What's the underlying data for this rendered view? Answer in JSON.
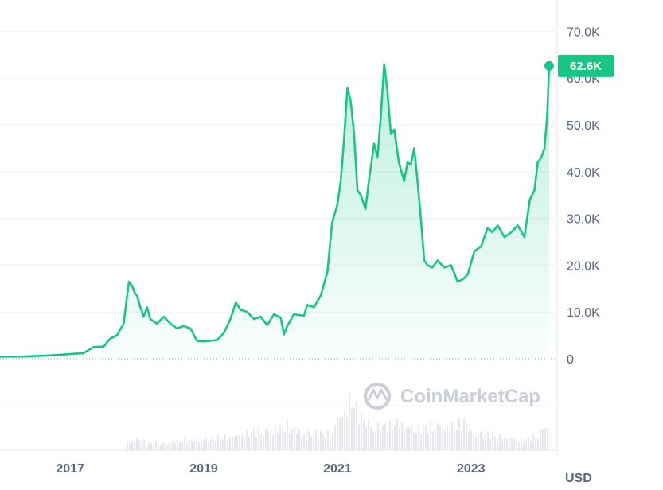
{
  "chart_data": {
    "type": "area",
    "x_ticks": [
      "2017",
      "2019",
      "2021",
      "2023"
    ],
    "y_ticks": [
      "0",
      "10.0K",
      "20.0K",
      "30.0K",
      "40.0K",
      "50.0K",
      "60.0K",
      "70.0K"
    ],
    "ylim": [
      0,
      75000
    ],
    "xlim": [
      2015.95,
      2024.17
    ],
    "unit_label": "USD",
    "current_value_label": "62.6K",
    "current_value": 62600,
    "grid": true,
    "line_color": "#16c784",
    "badge_color": "#16c784",
    "series": [
      {
        "x": [
          2015.95,
          2016.3,
          2016.6,
          2016.9,
          2017.0,
          2017.2,
          2017.35,
          2017.5,
          2017.6,
          2017.7,
          2017.8,
          2017.88,
          2017.93,
          2017.97,
          2018.0,
          2018.05,
          2018.1,
          2018.15,
          2018.2,
          2018.3,
          2018.4,
          2018.5,
          2018.6,
          2018.7,
          2018.8,
          2018.9,
          2019.0,
          2019.2,
          2019.3,
          2019.4,
          2019.48,
          2019.55,
          2019.65,
          2019.75,
          2019.85,
          2019.95,
          2020.05,
          2020.15,
          2020.2,
          2020.25,
          2020.35,
          2020.5,
          2020.55,
          2020.65,
          2020.75,
          2020.85,
          2020.92,
          2021.0,
          2021.05,
          2021.1,
          2021.15,
          2021.2,
          2021.25,
          2021.3,
          2021.35,
          2021.42,
          2021.48,
          2021.55,
          2021.6,
          2021.65,
          2021.7,
          2021.75,
          2021.8,
          2021.85,
          2021.88,
          2021.92,
          2022.0,
          2022.05,
          2022.1,
          2022.15,
          2022.2,
          2022.25,
          2022.3,
          2022.35,
          2022.42,
          2022.5,
          2022.6,
          2022.7,
          2022.8,
          2022.88,
          2022.95,
          2023.05,
          2023.15,
          2023.25,
          2023.32,
          2023.4,
          2023.5,
          2023.6,
          2023.7,
          2023.8,
          2023.88,
          2023.95,
          2024.0,
          2024.05,
          2024.1,
          2024.14,
          2024.17
        ],
        "values": [
          430,
          480,
          650,
          900,
          1000,
          1200,
          2500,
          2600,
          4300,
          5000,
          7500,
          16500,
          15500,
          14000,
          13500,
          11000,
          9000,
          11000,
          8500,
          7500,
          9000,
          7500,
          6500,
          7000,
          6500,
          3800,
          3700,
          4000,
          5500,
          8500,
          12000,
          10500,
          10000,
          8500,
          9000,
          7200,
          9500,
          8800,
          5200,
          7000,
          9500,
          9200,
          11500,
          11000,
          13500,
          18500,
          29000,
          33000,
          38000,
          47000,
          58000,
          55000,
          48000,
          36000,
          35000,
          32000,
          39000,
          46000,
          43000,
          52000,
          63000,
          57000,
          48000,
          49000,
          46000,
          42000,
          38000,
          42000,
          41500,
          45000,
          38000,
          30000,
          21000,
          20000,
          19500,
          21000,
          19500,
          20000,
          16500,
          17000,
          18000,
          23000,
          24000,
          28000,
          27000,
          28500,
          26000,
          27000,
          28500,
          26000,
          34000,
          36000,
          42000,
          43000,
          45000,
          52000,
          62600
        ]
      }
    ],
    "volume": {
      "x": [
        2017.9,
        2018.0,
        2018.2,
        2019.3,
        2019.5,
        2020.2,
        2020.5,
        2020.9,
        2021.0,
        2021.1,
        2021.2,
        2021.3,
        2021.4,
        2021.5,
        2021.8,
        2021.9,
        2022.2,
        2022.5,
        2022.8,
        2022.9,
        2023.0,
        2023.3,
        2023.5,
        2023.8,
        2024.0,
        2024.17
      ],
      "values": [
        0.18,
        0.22,
        0.12,
        0.25,
        0.3,
        0.45,
        0.35,
        0.3,
        0.65,
        0.75,
        1.0,
        0.7,
        0.6,
        0.5,
        0.45,
        0.55,
        0.4,
        0.5,
        0.45,
        0.6,
        0.35,
        0.3,
        0.25,
        0.2,
        0.3,
        0.65
      ]
    }
  },
  "watermark": {
    "text": "CoinMarketCap",
    "icon": "coinmarketcap-logo-icon"
  }
}
